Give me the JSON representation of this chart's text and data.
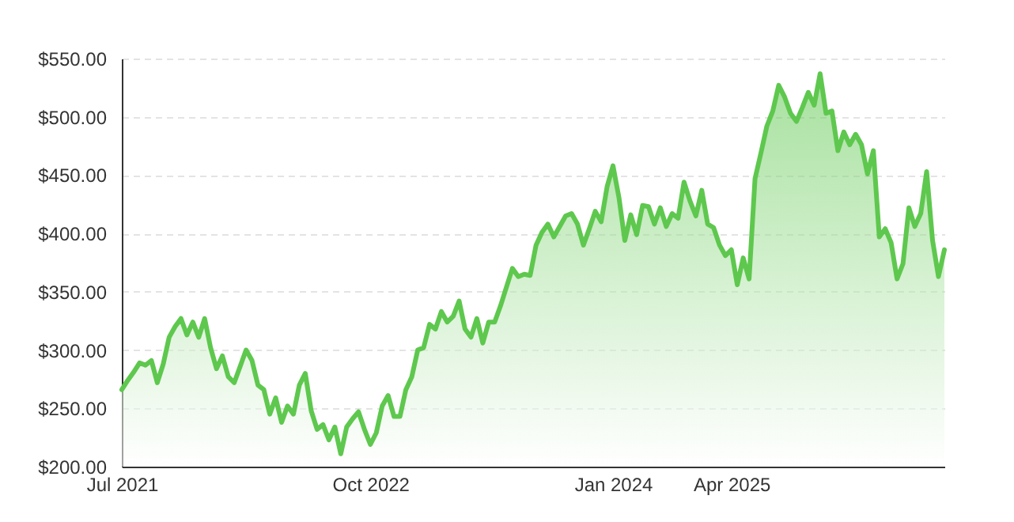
{
  "chart_data": {
    "type": "area",
    "categories": [
      "Jul 2021",
      null,
      null,
      null,
      null,
      null,
      null,
      null,
      null,
      null,
      null,
      null,
      null,
      null,
      null,
      null,
      null,
      null,
      null,
      null,
      null,
      null,
      null,
      null,
      null,
      null,
      null,
      null,
      null,
      null,
      null,
      null,
      null,
      null,
      null,
      null,
      null,
      null,
      null,
      null,
      null,
      null,
      "Oct 2022",
      null,
      null,
      null,
      null,
      null,
      null,
      null,
      null,
      null,
      null,
      null,
      null,
      null,
      null,
      null,
      null,
      null,
      null,
      null,
      null,
      null,
      null,
      null,
      null,
      null,
      null,
      null,
      null,
      null,
      null,
      null,
      null,
      null,
      null,
      null,
      null,
      null,
      null,
      null,
      null,
      "Jan 2024",
      null,
      null,
      null,
      null,
      null,
      null,
      null,
      null,
      null,
      null,
      null,
      null,
      null,
      null,
      null,
      null,
      null,
      null,
      null,
      "Apr 2025",
      null,
      null,
      null,
      null,
      null,
      null,
      null,
      null,
      null,
      null,
      null,
      null,
      null,
      null,
      null,
      null,
      null,
      null,
      null,
      null,
      null,
      null,
      null,
      null,
      null,
      null,
      null,
      null,
      null,
      null,
      null,
      null,
      null,
      null,
      null,
      null
    ],
    "series": [
      {
        "color": "#5ec84e",
        "values": [
          266,
          274,
          281,
          289,
          287,
          291,
          272,
          288,
          311,
          320,
          327,
          313,
          324,
          311,
          327,
          302,
          284,
          295,
          277,
          272,
          286,
          300,
          291,
          270,
          266,
          245,
          259,
          238,
          252,
          245,
          270,
          280,
          248,
          232,
          236,
          223,
          234,
          211,
          234,
          241,
          247,
          232,
          219,
          229,
          252,
          261,
          243,
          243,
          266,
          277,
          300,
          302,
          322,
          318,
          333,
          324,
          329,
          342,
          318,
          311,
          327,
          306,
          324,
          324,
          338,
          354,
          370,
          363,
          365,
          364,
          390,
          401,
          408,
          397,
          406,
          415,
          417,
          408,
          390,
          404,
          419,
          410,
          440,
          458,
          431,
          394,
          416,
          399,
          424,
          423,
          408,
          422,
          406,
          417,
          413,
          444,
          428,
          415,
          437,
          408,
          405,
          390,
          381,
          386,
          356,
          379,
          361,
          447,
          469,
          492,
          505,
          527,
          517,
          503,
          496,
          508,
          521,
          510,
          537,
          503,
          505,
          471,
          487,
          476,
          485,
          476,
          451,
          471,
          397,
          404,
          392,
          361,
          374,
          422,
          406,
          417,
          453,
          394,
          363,
          386
        ]
      }
    ],
    "ylim": [
      200,
      550
    ],
    "yticks": [
      {
        "value": 200,
        "label": "$200.00"
      },
      {
        "value": 250,
        "label": "$250.00"
      },
      {
        "value": 300,
        "label": "$300.00"
      },
      {
        "value": 350,
        "label": "$350.00"
      },
      {
        "value": 400,
        "label": "$400.00"
      },
      {
        "value": 450,
        "label": "$450.00"
      },
      {
        "value": 500,
        "label": "$500.00"
      },
      {
        "value": 550,
        "label": "$550.00"
      }
    ],
    "grid": "y"
  }
}
